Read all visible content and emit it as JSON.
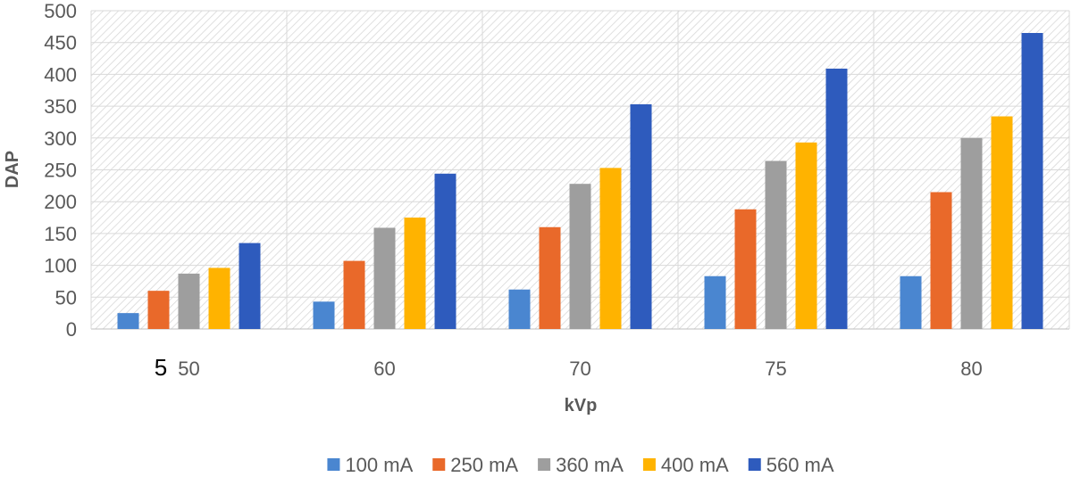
{
  "chart_data": {
    "type": "bar",
    "xlabel": "kVp",
    "ylabel": "DAP",
    "ylim": [
      0,
      500
    ],
    "ytick_step": 50,
    "grid": true,
    "plot_background": "diagonal-hatch",
    "legend_position": "bottom",
    "stray_label": "5",
    "categories": [
      "50",
      "60",
      "70",
      "75",
      "80"
    ],
    "series": [
      {
        "name": "100 mA",
        "color": "#4a86d0",
        "values": [
          25,
          43,
          62,
          83,
          83
        ]
      },
      {
        "name": "250 mA",
        "color": "#e9692a",
        "values": [
          60,
          107,
          160,
          188,
          215
        ]
      },
      {
        "name": "360 mA",
        "color": "#9e9e9e",
        "values": [
          87,
          159,
          228,
          264,
          300
        ]
      },
      {
        "name": "400 mA",
        "color": "#ffb300",
        "values": [
          96,
          175,
          253,
          293,
          334
        ]
      },
      {
        "name": "560 mA",
        "color": "#2e5bbd",
        "values": [
          135,
          244,
          353,
          409,
          465
        ]
      }
    ]
  }
}
